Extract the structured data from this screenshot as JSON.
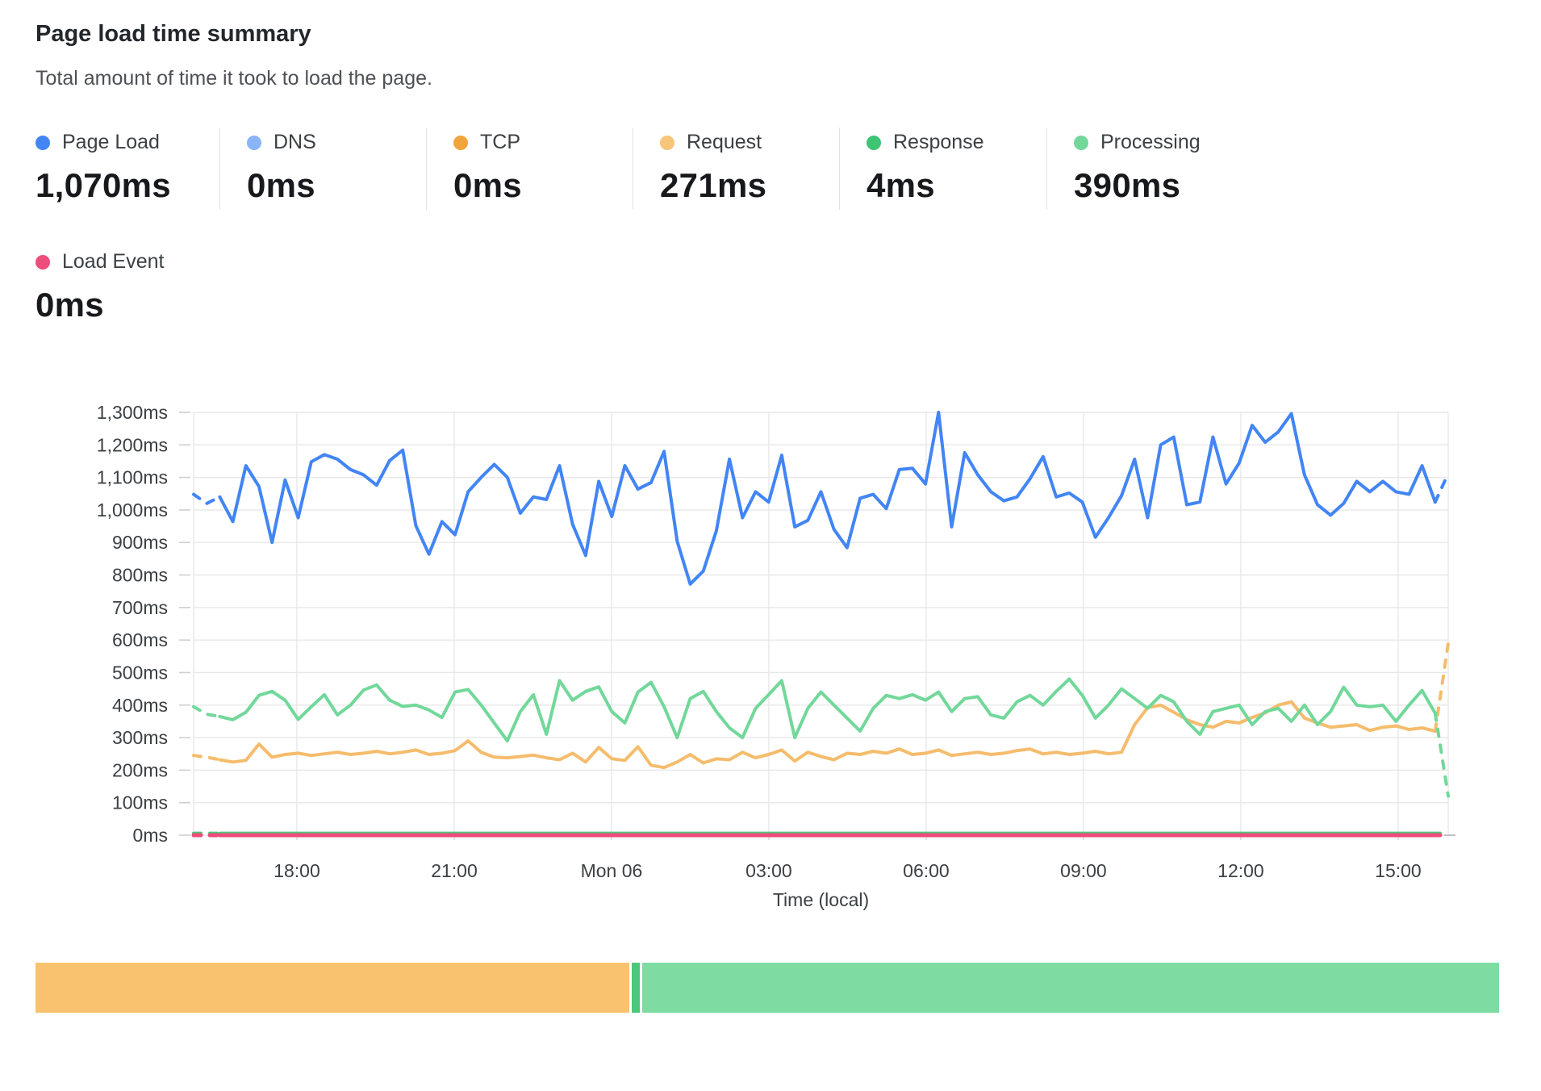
{
  "header": {
    "title": "Page load time summary",
    "subtitle": "Total amount of time it took to load the page."
  },
  "metrics": [
    {
      "label": "Page Load",
      "value": "1,070ms",
      "color": "#4285F4"
    },
    {
      "label": "DNS",
      "value": "0ms",
      "color": "#8AB4F8"
    },
    {
      "label": "TCP",
      "value": "0ms",
      "color": "#F2A43C"
    },
    {
      "label": "Request",
      "value": "271ms",
      "color": "#F8C678"
    },
    {
      "label": "Response",
      "value": "4ms",
      "color": "#3EC473"
    },
    {
      "label": "Processing",
      "value": "390ms",
      "color": "#71D89A"
    },
    {
      "label": "Load Event",
      "value": "0ms",
      "color": "#EE4C7C"
    }
  ],
  "chart_data": {
    "type": "line",
    "title": "Page load time summary",
    "xlabel": "Time (local)",
    "ylabel": "",
    "y_max": 1300,
    "y_tick_step": 100,
    "y_tick_labels": [
      "0ms",
      "100ms",
      "200ms",
      "300ms",
      "400ms",
      "500ms",
      "600ms",
      "700ms",
      "800ms",
      "900ms",
      "1,000ms",
      "1,100ms",
      "1,200ms",
      "1,300ms"
    ],
    "x_tick_labels": [
      "18:00",
      "21:00",
      "Mon 06",
      "03:00",
      "06:00",
      "09:00",
      "12:00",
      "15:00"
    ],
    "x_start_frac": 0.0823,
    "x_step_frac": 0.1254,
    "grid": true,
    "series": [
      {
        "name": "Page Load",
        "color": "#4285F4",
        "width": 4,
        "dash_lead": true,
        "dash_tail": true,
        "values": [
          1048,
          1020,
          1040,
          964,
          1136,
          1072,
          900,
          1092,
          976,
          1148,
          1170,
          1156,
          1124,
          1108,
          1076,
          1152,
          1184,
          952,
          864,
          964,
          924,
          1056,
          1100,
          1140,
          1100,
          990,
          1040,
          1032,
          1136,
          956,
          860,
          1088,
          980,
          1136,
          1064,
          1084,
          1180,
          904,
          772,
          812,
          936,
          1156,
          976,
          1056,
          1024,
          1168,
          948,
          968,
          1056,
          940,
          884,
          1036,
          1048,
          1004,
          1124,
          1128,
          1080,
          1300,
          948,
          1176,
          1108,
          1056,
          1028,
          1040,
          1096,
          1164,
          1040,
          1052,
          1024,
          916,
          976,
          1044,
          1156,
          976,
          1200,
          1224,
          1016,
          1024,
          1224,
          1080,
          1144,
          1260,
          1208,
          1240,
          1296,
          1108,
          1016,
          984,
          1020,
          1088,
          1056,
          1088,
          1056,
          1048,
          1136,
          1024,
          1112
        ]
      },
      {
        "name": "Processing",
        "color": "#71D89A",
        "width": 4,
        "dash_lead": true,
        "dash_tail": true,
        "values": [
          395,
          372,
          365,
          355,
          378,
          430,
          442,
          415,
          356,
          395,
          432,
          370,
          400,
          446,
          462,
          415,
          396,
          400,
          385,
          362,
          440,
          448,
          400,
          345,
          290,
          380,
          432,
          310,
          475,
          415,
          442,
          456,
          380,
          345,
          440,
          470,
          395,
          300,
          420,
          442,
          380,
          330,
          300,
          390,
          432,
          475,
          300,
          390,
          440,
          400,
          360,
          320,
          390,
          430,
          420,
          432,
          415,
          440,
          380,
          420,
          426,
          370,
          360,
          410,
          430,
          400,
          442,
          480,
          430,
          360,
          400,
          450,
          420,
          390,
          430,
          410,
          350,
          310,
          380,
          390,
          400,
          340,
          380,
          390,
          350,
          400,
          340,
          380,
          455,
          400,
          395,
          400,
          350,
          400,
          445,
          375,
          120
        ]
      },
      {
        "name": "Request",
        "color": "#F5BC6C",
        "width": 4,
        "dash_lead": true,
        "dash_tail": true,
        "values": [
          245,
          240,
          232,
          225,
          230,
          280,
          240,
          248,
          252,
          245,
          250,
          255,
          248,
          252,
          258,
          250,
          255,
          262,
          248,
          252,
          260,
          290,
          255,
          240,
          238,
          242,
          246,
          238,
          232,
          252,
          225,
          270,
          235,
          230,
          272,
          215,
          208,
          225,
          248,
          222,
          235,
          232,
          255,
          238,
          248,
          262,
          228,
          255,
          242,
          232,
          252,
          248,
          258,
          252,
          265,
          248,
          252,
          262,
          245,
          250,
          255,
          248,
          252,
          260,
          265,
          250,
          255,
          248,
          252,
          258,
          250,
          255,
          340,
          392,
          400,
          378,
          355,
          340,
          332,
          350,
          345,
          362,
          376,
          400,
          410,
          360,
          345,
          332,
          336,
          340,
          322,
          332,
          336,
          325,
          330,
          320,
          590
        ]
      },
      {
        "name": "Response",
        "color": "#4DC97B",
        "width": 4,
        "dash_lead": true,
        "dash_tail": false,
        "constant": 6,
        "end_trim": true
      },
      {
        "name": "Load Event",
        "color": "#EE4C7C",
        "width": 5,
        "dash_lead": true,
        "dash_tail": false,
        "constant": 0,
        "end_trim": true
      }
    ]
  },
  "stacked_bar": {
    "segments": [
      {
        "label": "Request",
        "width": "40.7%",
        "color": "#F8C26E"
      },
      {
        "label": "Response",
        "width": "0.55%",
        "color": "#4CC87C"
      },
      {
        "label": "Processing",
        "width": "58.75%",
        "color": "#7EDBA2"
      }
    ]
  }
}
